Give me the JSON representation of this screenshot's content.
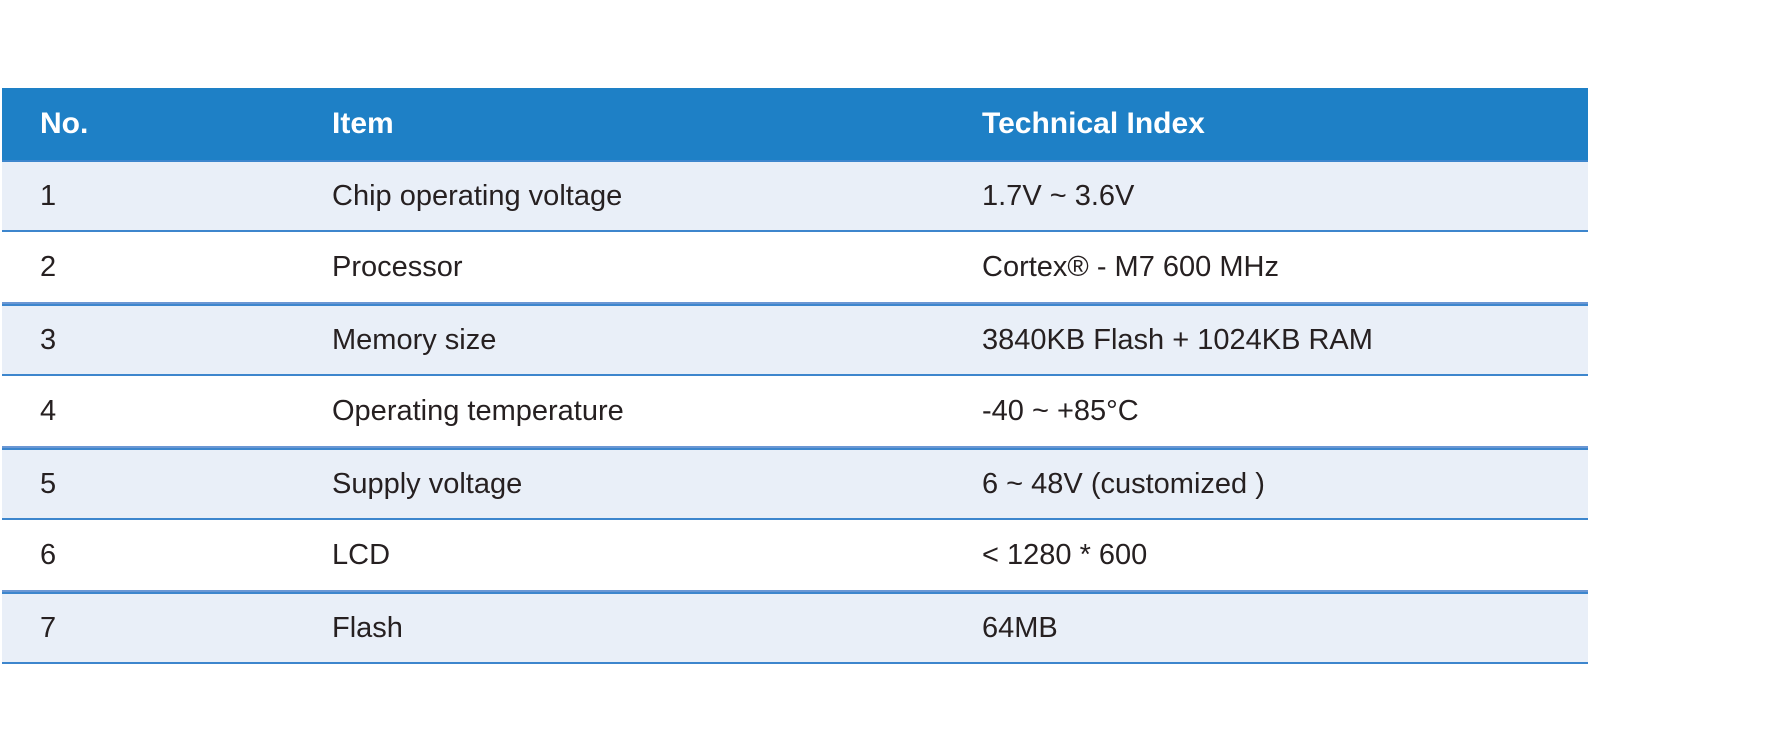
{
  "colors": {
    "header_background": "#1e80c6",
    "header_text": "#ffffff",
    "zebra_row_background": "#e9eff8",
    "row_separator": "#6b97d4",
    "body_text": "#262021"
  },
  "table": {
    "columns": [
      "No.",
      "Item",
      "Technical Index"
    ],
    "rows": [
      {
        "no": "1",
        "item": "Chip operating voltage",
        "index": "1.7V ~ 3.6V"
      },
      {
        "no": "2",
        "item": "Processor",
        "index": "Cortex® - M7 600 MHz"
      },
      {
        "no": "3",
        "item": "Memory size",
        "index": "3840KB Flash + 1024KB RAM"
      },
      {
        "no": "4",
        "item": "Operating temperature",
        "index": "-40 ~ +85°C"
      },
      {
        "no": "5",
        "item": "Supply voltage",
        "index": "6 ~ 48V (customized )"
      },
      {
        "no": "6",
        "item": "LCD",
        "index": "< 1280 * 600"
      },
      {
        "no": "7",
        "item": "Flash",
        "index": "64MB"
      }
    ]
  }
}
